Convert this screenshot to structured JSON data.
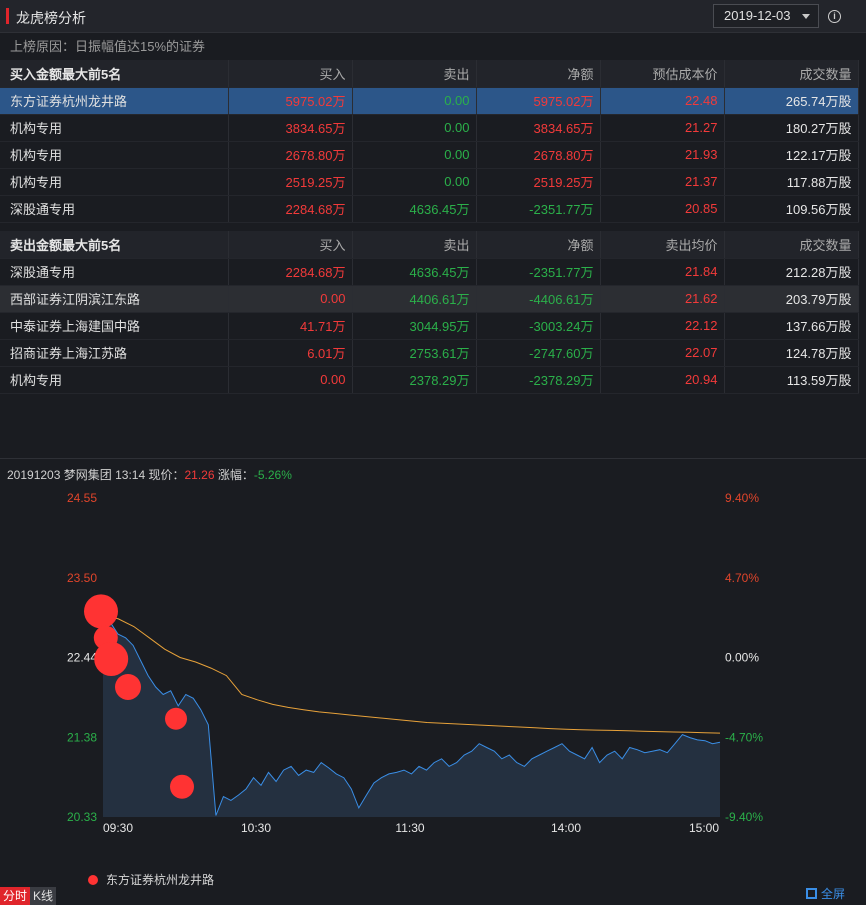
{
  "header": {
    "title": "龙虎榜分析",
    "date": "2019-12-03"
  },
  "reason": "上榜原因：日振幅值达15%的证券",
  "buy_table": {
    "headers": [
      "买入金额最大前5名",
      "买入",
      "卖出",
      "净额",
      "预估成本价",
      "成交数量"
    ],
    "rows": [
      [
        "东方证券杭州龙井路",
        "5975.02万",
        "0.00",
        "5975.02万",
        "22.48",
        "265.74万股"
      ],
      [
        "机构专用",
        "3834.65万",
        "0.00",
        "3834.65万",
        "21.27",
        "180.27万股"
      ],
      [
        "机构专用",
        "2678.80万",
        "0.00",
        "2678.80万",
        "21.93",
        "122.17万股"
      ],
      [
        "机构专用",
        "2519.25万",
        "0.00",
        "2519.25万",
        "21.37",
        "117.88万股"
      ],
      [
        "深股通专用",
        "2284.68万",
        "4636.45万",
        "-2351.77万",
        "20.85",
        "109.56万股"
      ]
    ]
  },
  "sell_table": {
    "headers": [
      "卖出金额最大前5名",
      "买入",
      "卖出",
      "净额",
      "卖出均价",
      "成交数量"
    ],
    "rows": [
      [
        "深股通专用",
        "2284.68万",
        "4636.45万",
        "-2351.77万",
        "21.84",
        "212.28万股"
      ],
      [
        "西部证券江阴滨江东路",
        "0.00",
        "4406.61万",
        "-4406.61万",
        "21.62",
        "203.79万股"
      ],
      [
        "中泰证券上海建国中路",
        "41.71万",
        "3044.95万",
        "-3003.24万",
        "22.12",
        "137.66万股"
      ],
      [
        "招商证券上海江苏路",
        "6.01万",
        "2753.61万",
        "-2747.60万",
        "22.07",
        "124.78万股"
      ],
      [
        "机构专用",
        "0.00",
        "2378.29万",
        "-2378.29万",
        "20.94",
        "113.59万股"
      ]
    ]
  },
  "chart_header": {
    "date": "20191203",
    "name": "梦网集团",
    "time": "13:14",
    "price_label": "现价：",
    "price": "21.26",
    "change_label": "涨幅：",
    "change": "-5.26%"
  },
  "chart_data": {
    "type": "line",
    "y_left_ticks": [
      "24.55",
      "23.50",
      "22.44",
      "21.38",
      "20.33"
    ],
    "y_right_ticks": [
      "9.40%",
      "4.70%",
      "0.00%",
      "-4.70%",
      "-9.40%"
    ],
    "x_ticks": [
      "09:30",
      "10:30",
      "11:30",
      "14:00",
      "15:00"
    ],
    "ylim": [
      20.33,
      24.55
    ],
    "prev_close": 22.44,
    "price_series": [
      23.1,
      22.9,
      22.75,
      22.7,
      22.6,
      22.4,
      22.2,
      22.05,
      21.95,
      22.0,
      21.8,
      21.95,
      21.9,
      21.75,
      21.55,
      20.35,
      20.6,
      20.55,
      20.62,
      20.7,
      20.85,
      20.75,
      20.92,
      20.8,
      20.95,
      21.0,
      20.88,
      20.95,
      20.92,
      21.05,
      20.98,
      20.9,
      20.85,
      20.7,
      20.45,
      20.62,
      20.78,
      20.85,
      20.9,
      20.92,
      20.95,
      20.9,
      21.0,
      20.95,
      21.05,
      21.1,
      21.0,
      21.05,
      21.15,
      21.2,
      21.3,
      21.25,
      21.2,
      21.1,
      21.15,
      21.05,
      21.0,
      21.1,
      21.15,
      21.2,
      21.25,
      21.3,
      21.2,
      21.15,
      21.1,
      21.25,
      21.05,
      21.15,
      21.2,
      21.1,
      21.25,
      21.22,
      21.18,
      21.2,
      21.22,
      21.18,
      21.3,
      21.42,
      21.38,
      21.35,
      21.34,
      21.3,
      21.32
    ],
    "avg_series": [
      23.0,
      22.95,
      22.85,
      22.7,
      22.55,
      22.44,
      22.38,
      22.3,
      22.2,
      21.95,
      21.88,
      21.82,
      21.78,
      21.75,
      21.72,
      21.7,
      21.68,
      21.66,
      21.64,
      21.62,
      21.6,
      21.58,
      21.57,
      21.56,
      21.55,
      21.54,
      21.53,
      21.52,
      21.51,
      21.5,
      21.49,
      21.485,
      21.48,
      21.475,
      21.47,
      21.465,
      21.46,
      21.455,
      21.45,
      21.445,
      21.44
    ],
    "markers": [
      {
        "t": 0.0,
        "v": 23.05,
        "r": 17
      },
      {
        "t": 0.08,
        "v": 22.7,
        "r": 12
      },
      {
        "t": 0.17,
        "v": 22.42,
        "r": 17
      },
      {
        "t": 0.45,
        "v": 22.05,
        "r": 13
      },
      {
        "t": 1.25,
        "v": 21.63,
        "r": 11
      },
      {
        "t": 1.35,
        "v": 20.73,
        "r": 12
      }
    ],
    "legend": [
      "东方证券杭州龙井路"
    ]
  },
  "tabs": {
    "fenshi": "分时",
    "kline": "K线"
  },
  "fullscreen": "全屏",
  "colors": {
    "up": "#f23a3a",
    "down": "#2bb04a",
    "price_line": "#3a8ee6",
    "avg_line": "#e8a23a",
    "marker": "#ff3333",
    "accent": "#e0252b"
  }
}
